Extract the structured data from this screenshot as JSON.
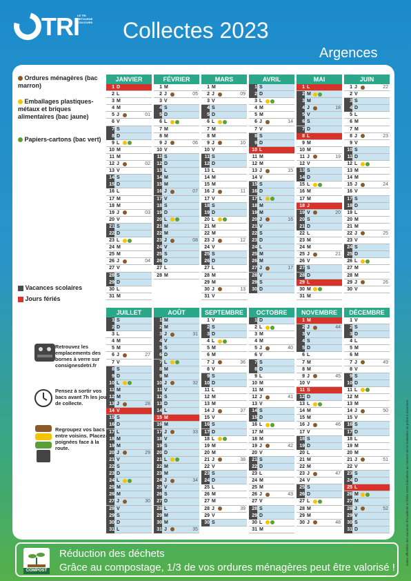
{
  "brand": {
    "logo_text": "TRI",
    "tagline": "LE TRI RETOURNE TOUJOURS"
  },
  "header": {
    "title": "Collectes 2023",
    "city": "Argences"
  },
  "legend": {
    "ordures": "Ordures ménagères (bac marron)",
    "emballages": "Emballages plastiques-métaux et briques alimentaires (bac jaune)",
    "papiers": "Papiers-cartons (bac vert)",
    "vacances": "Vacances scolaires",
    "feries": "Jours fériés"
  },
  "colors": {
    "brown": "#8b5a2b",
    "yellow": "#f2c500",
    "green": "#5a9e3a",
    "vacation": "#c9e3f1",
    "holiday": "#d8332b",
    "header": "#2aa889"
  },
  "tips": {
    "verre": "Retrouvez les emplacements des bornes à verre sur consignesdetri.fr",
    "horaire": "Pensez à sortir vos bacs avant 7h les jours de collecte.",
    "voisins": "Regroupez vos bacs entre voisins. Placez-les poignées face à la route."
  },
  "notice": "Dates officielles des vacances d'Académie et fériés 2023 indicatives au moment de la réalisation du présent document.",
  "footer": {
    "title": "Réduction des déchets",
    "text": "Grâce au compostage, 1/3 de vos ordures ménagères peut être valorisé !",
    "compost_label": "COMPOST"
  },
  "months": [
    {
      "name": "JANVIER",
      "first": 0,
      "len": 31,
      "vac": [
        1
      ],
      "fer": [
        1
      ],
      "brown": [
        5,
        12,
        19,
        26
      ],
      "yellow": [
        9,
        23
      ],
      "green": [
        9,
        23
      ],
      "weeks": {
        "5": "01",
        "12": "02",
        "19": "03",
        "26": "04"
      }
    },
    {
      "name": "FÉVRIER",
      "first": 3,
      "len": 28,
      "vac": [
        11,
        12,
        13,
        14,
        15,
        16,
        17,
        18,
        19,
        20,
        21,
        22,
        23,
        24,
        25,
        26
      ],
      "fer": [],
      "brown": [
        2,
        9,
        16,
        23
      ],
      "yellow": [
        6,
        20
      ],
      "green": [
        6,
        20
      ],
      "weeks": {
        "2": "05",
        "9": "06",
        "16": "07",
        "23": "08"
      }
    },
    {
      "name": "MARS",
      "first": 3,
      "len": 31,
      "vac": [],
      "fer": [],
      "brown": [
        2,
        9,
        16,
        23,
        30
      ],
      "yellow": [
        6,
        20
      ],
      "green": [
        6,
        20
      ],
      "weeks": {
        "2": "09",
        "9": "10",
        "16": "11",
        "23": "12",
        "30": "13"
      }
    },
    {
      "name": "AVRIL",
      "first": 6,
      "len": 30,
      "vac": [
        15,
        16,
        17,
        18,
        19,
        20,
        21,
        22,
        23,
        24,
        25,
        26,
        27,
        28,
        29,
        30
      ],
      "fer": [
        10
      ],
      "brown": [
        6,
        13,
        20,
        27
      ],
      "yellow": [
        3,
        17
      ],
      "green": [
        3,
        17
      ],
      "weeks": {
        "6": "14",
        "13": "15",
        "20": "16",
        "27": "17"
      }
    },
    {
      "name": "MAI",
      "first": 1,
      "len": 31,
      "vac": [
        1,
        2,
        3,
        4,
        5,
        6,
        7,
        8,
        18,
        19,
        20,
        21
      ],
      "fer": [
        1,
        8,
        18,
        29
      ],
      "brown": [
        4,
        11,
        19,
        25
      ],
      "yellow": [
        2,
        15,
        30
      ],
      "green": [
        2,
        15,
        30
      ],
      "weeks": {
        "4": "18",
        "11": "19",
        "19": "20",
        "25": "21"
      }
    },
    {
      "name": "JUIN",
      "first": 4,
      "len": 30,
      "vac": [],
      "fer": [],
      "brown": [
        1,
        8,
        15,
        22,
        29
      ],
      "yellow": [
        12,
        26
      ],
      "green": [
        12,
        26
      ],
      "weeks": {
        "1": "22",
        "8": "23",
        "15": "24",
        "22": "25",
        "29": "26"
      }
    },
    {
      "name": "JUILLET",
      "first": 6,
      "len": 31,
      "vac": [
        8,
        9,
        10,
        11,
        12,
        13,
        14,
        15,
        16,
        17,
        18,
        19,
        20,
        21,
        22,
        23,
        24,
        25,
        26,
        27,
        28,
        29,
        30,
        31
      ],
      "fer": [
        14
      ],
      "brown": [
        6,
        13,
        20,
        27
      ],
      "yellow": [
        10,
        24
      ],
      "green": [
        10,
        24
      ],
      "weeks": {
        "6": "27",
        "13": "28",
        "20": "29",
        "27": "30"
      }
    },
    {
      "name": "AOÛT",
      "first": 2,
      "len": 31,
      "vac": [
        1,
        2,
        3,
        4,
        5,
        6,
        7,
        8,
        9,
        10,
        11,
        12,
        13,
        14,
        15,
        16,
        17,
        18,
        19,
        20,
        21,
        22,
        23,
        24,
        25,
        26,
        27,
        28,
        29,
        30,
        31
      ],
      "fer": [
        15
      ],
      "brown": [
        3,
        10,
        17,
        24,
        31
      ],
      "yellow": [
        7,
        21
      ],
      "green": [
        7,
        21
      ],
      "weeks": {
        "3": "31",
        "10": "32",
        "17": "33",
        "24": "34",
        "31": "35"
      }
    },
    {
      "name": "SEPTEMBRE",
      "first": 5,
      "len": 30,
      "vac": [],
      "fer": [],
      "brown": [
        7,
        14,
        21,
        28
      ],
      "yellow": [
        4,
        18
      ],
      "green": [
        4,
        18
      ],
      "weeks": {
        "7": "36",
        "14": "37",
        "21": "38",
        "28": "39"
      }
    },
    {
      "name": "OCTOBRE",
      "first": 0,
      "len": 31,
      "vac": [],
      "fer": [],
      "brown": [
        5,
        12,
        19,
        26
      ],
      "yellow": [
        2,
        16,
        30
      ],
      "green": [
        2,
        16,
        30
      ],
      "weeks": {
        "5": "40",
        "12": "41",
        "19": "42",
        "26": "43"
      }
    },
    {
      "name": "NOVEMBRE",
      "first": 3,
      "len": 30,
      "vac": [
        1,
        2,
        3,
        4,
        5
      ],
      "fer": [
        1,
        11
      ],
      "brown": [
        2,
        9,
        16,
        23,
        30
      ],
      "yellow": [
        13,
        27
      ],
      "green": [
        13,
        27
      ],
      "weeks": {
        "2": "44",
        "9": "45",
        "16": "46",
        "23": "47",
        "30": "48"
      }
    },
    {
      "name": "DÉCEMBRE",
      "first": 5,
      "len": 31,
      "vac": [
        23,
        24,
        25,
        26,
        27,
        28,
        29,
        30,
        31
      ],
      "fer": [
        25
      ],
      "brown": [
        7,
        14,
        21,
        28
      ],
      "yellow": [
        11,
        26
      ],
      "green": [
        11,
        26
      ],
      "weeks": {
        "7": "49",
        "14": "50",
        "21": "51",
        "28": "52"
      }
    }
  ],
  "weekday_letters": [
    "D",
    "L",
    "M",
    "M",
    "J",
    "V",
    "S"
  ]
}
